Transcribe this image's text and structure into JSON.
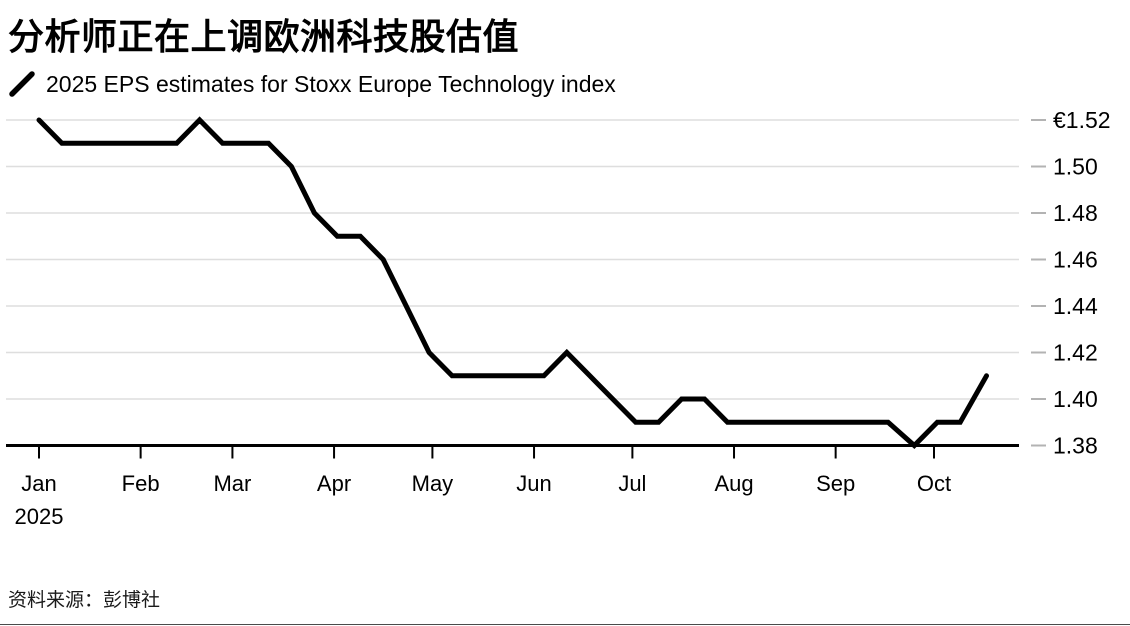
{
  "header": {
    "title": "分析师正在上调欧洲科技股估值",
    "legend_label": "2025 EPS estimates for Stoxx Europe Technology index"
  },
  "footer": {
    "source": "资料来源：彭博社"
  },
  "chart_data": {
    "type": "line",
    "title": "分析师正在上调欧洲科技股估值",
    "series_name": "2025 EPS estimates for Stoxx Europe Technology index",
    "currency_prefix": "€",
    "ylim": [
      1.38,
      1.52
    ],
    "grid": "horizontal",
    "legend_position": "top-left",
    "line_color": "#000000",
    "grid_color": "#dedede",
    "tick_dash_color": "#b3b3b3",
    "axis_color": "#000000",
    "y_ticks": [
      {
        "label": "€1.52",
        "value": 1.52
      },
      {
        "label": "1.50",
        "value": 1.5
      },
      {
        "label": "1.48",
        "value": 1.48
      },
      {
        "label": "1.46",
        "value": 1.46
      },
      {
        "label": "1.44",
        "value": 1.44
      },
      {
        "label": "1.42",
        "value": 1.42
      },
      {
        "label": "1.40",
        "value": 1.4
      },
      {
        "label": "1.38",
        "value": 1.38
      }
    ],
    "x_ticks": [
      {
        "label": "Jan",
        "day": 0
      },
      {
        "label": "Feb",
        "day": 31
      },
      {
        "label": "Mar",
        "day": 59
      },
      {
        "label": "Apr",
        "day": 90
      },
      {
        "label": "May",
        "day": 120
      },
      {
        "label": "Jun",
        "day": 151
      },
      {
        "label": "Jul",
        "day": 181
      },
      {
        "label": "Aug",
        "day": 212
      },
      {
        "label": "Sep",
        "day": 243
      },
      {
        "label": "Oct",
        "day": 273
      }
    ],
    "x_axis_year": "2025",
    "points": [
      [
        "2025-01-01",
        1.52
      ],
      [
        "2025-01-08",
        1.51
      ],
      [
        "2025-01-15",
        1.51
      ],
      [
        "2025-01-22",
        1.51
      ],
      [
        "2025-01-29",
        1.51
      ],
      [
        "2025-02-05",
        1.51
      ],
      [
        "2025-02-12",
        1.51
      ],
      [
        "2025-02-19",
        1.52
      ],
      [
        "2025-02-26",
        1.51
      ],
      [
        "2025-03-05",
        1.51
      ],
      [
        "2025-03-12",
        1.51
      ],
      [
        "2025-03-19",
        1.5
      ],
      [
        "2025-03-26",
        1.48
      ],
      [
        "2025-04-02",
        1.47
      ],
      [
        "2025-04-09",
        1.47
      ],
      [
        "2025-04-16",
        1.46
      ],
      [
        "2025-04-23",
        1.44
      ],
      [
        "2025-04-30",
        1.42
      ],
      [
        "2025-05-07",
        1.41
      ],
      [
        "2025-05-14",
        1.41
      ],
      [
        "2025-05-21",
        1.41
      ],
      [
        "2025-05-28",
        1.41
      ],
      [
        "2025-06-04",
        1.41
      ],
      [
        "2025-06-11",
        1.42
      ],
      [
        "2025-06-18",
        1.41
      ],
      [
        "2025-06-25",
        1.4
      ],
      [
        "2025-07-02",
        1.39
      ],
      [
        "2025-07-09",
        1.39
      ],
      [
        "2025-07-16",
        1.4
      ],
      [
        "2025-07-23",
        1.4
      ],
      [
        "2025-07-30",
        1.39
      ],
      [
        "2025-08-06",
        1.39
      ],
      [
        "2025-08-13",
        1.39
      ],
      [
        "2025-08-20",
        1.39
      ],
      [
        "2025-08-27",
        1.39
      ],
      [
        "2025-09-03",
        1.39
      ],
      [
        "2025-09-10",
        1.39
      ],
      [
        "2025-09-17",
        1.39
      ],
      [
        "2025-09-25",
        1.38
      ],
      [
        "2025-10-02",
        1.39
      ],
      [
        "2025-10-09",
        1.39
      ],
      [
        "2025-10-17",
        1.41
      ]
    ]
  }
}
